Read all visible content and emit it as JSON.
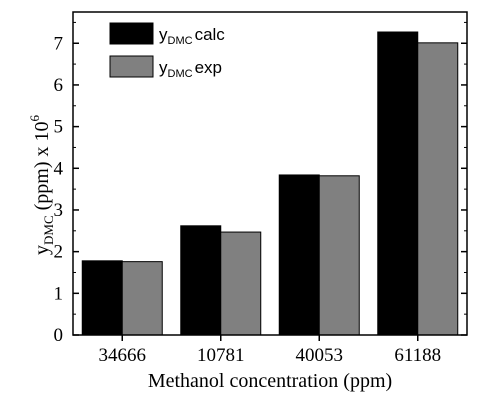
{
  "chart_data": {
    "type": "bar",
    "title": "",
    "xlabel": "Methanol  concentration (ppm)",
    "ylabel_parts": {
      "main": "y",
      "subscript": "DMC",
      "rest": " (ppm) x 10",
      "superscript": "6"
    },
    "categories": [
      "34666",
      "10781",
      "40053",
      "61188"
    ],
    "series": [
      {
        "name_main": "y",
        "name_sub": "DMC",
        "name_rest": "calc",
        "color": "#000000",
        "values": [
          1.78,
          2.62,
          3.84,
          7.27
        ]
      },
      {
        "name_main": "y",
        "name_sub": "DMC",
        "name_rest": "exp",
        "color": "#808080",
        "values": [
          1.76,
          2.47,
          3.82,
          7.01
        ]
      }
    ],
    "yticks": [
      0,
      1,
      2,
      3,
      4,
      5,
      6,
      7
    ],
    "ylim": [
      0,
      7.75
    ],
    "grid": false,
    "legend_position": "top-left"
  }
}
